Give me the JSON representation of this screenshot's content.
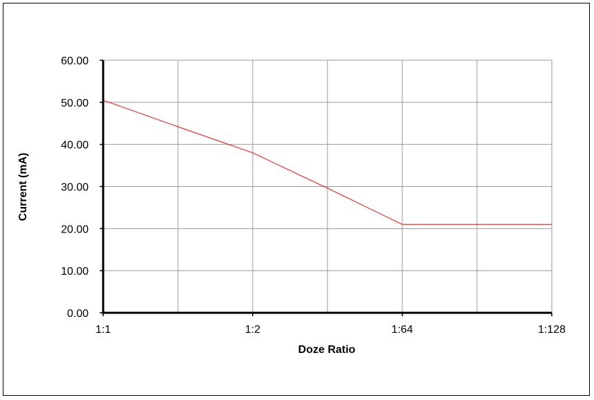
{
  "chart_data": {
    "type": "line",
    "title": "",
    "xlabel": "Doze Ratio",
    "ylabel": "Current (mA)",
    "categories": [
      "1:1",
      "1:2",
      "1:64",
      "1:128"
    ],
    "y_ticks": [
      "0.00",
      "10.00",
      "20.00",
      "30.00",
      "40.00",
      "50.00",
      "60.00"
    ],
    "ylim": [
      0,
      60
    ],
    "grid": true,
    "legend": "none",
    "series": [
      {
        "color": "#ff0000",
        "x": [
          0,
          0.5,
          1,
          1.5,
          2,
          2.5,
          3
        ],
        "y": [
          50.5,
          44.2,
          38.0,
          29.6,
          21.0,
          21.0,
          21.0
        ]
      }
    ]
  }
}
